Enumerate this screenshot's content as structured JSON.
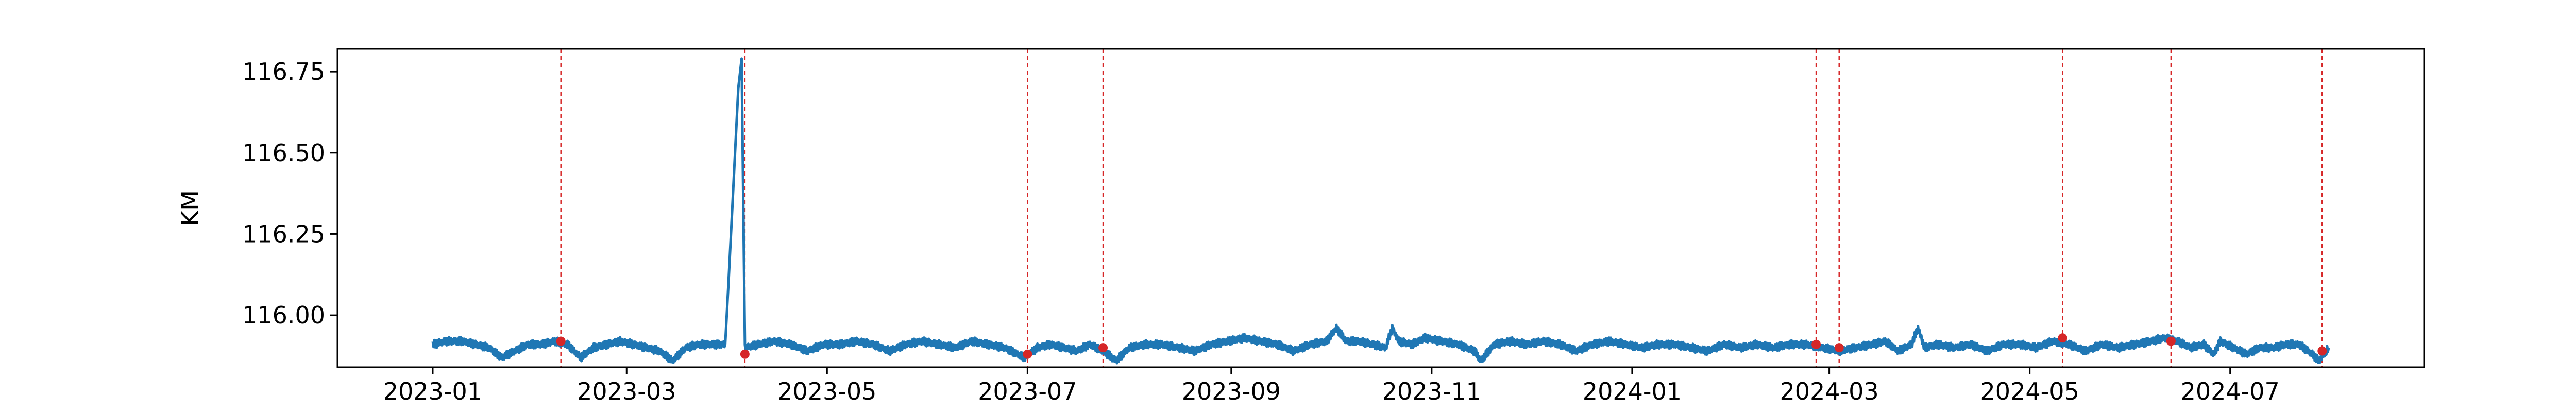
{
  "chart_data": {
    "type": "line",
    "title": "",
    "xlabel": "",
    "ylabel": "KM",
    "xlim": [
      "2022-12-03",
      "2024-08-29"
    ],
    "ylim": [
      115.84,
      116.82
    ],
    "grid": false,
    "legend": "none",
    "x_ticks": [
      "2023-01",
      "2023-03",
      "2023-05",
      "2023-07",
      "2023-09",
      "2023-11",
      "2024-01",
      "2024-03",
      "2024-05",
      "2024-07"
    ],
    "y_ticks": [
      "116.00",
      "116.25",
      "116.50",
      "116.75"
    ],
    "series": [
      {
        "color": "#1f77b4",
        "points": [
          [
            "2023-01-01",
            115.91
          ],
          [
            "2023-01-05",
            115.92
          ],
          [
            "2023-01-10",
            115.92
          ],
          [
            "2023-01-14",
            115.91
          ],
          [
            "2023-01-18",
            115.9
          ],
          [
            "2023-01-22",
            115.87
          ],
          [
            "2023-01-26",
            115.89
          ],
          [
            "2023-01-30",
            115.91
          ],
          [
            "2023-02-03",
            115.91
          ],
          [
            "2023-02-07",
            115.92
          ],
          [
            "2023-02-11",
            115.91
          ],
          [
            "2023-02-15",
            115.87
          ],
          [
            "2023-02-19",
            115.9
          ],
          [
            "2023-02-23",
            115.91
          ],
          [
            "2023-02-27",
            115.92
          ],
          [
            "2023-03-03",
            115.91
          ],
          [
            "2023-03-07",
            115.9
          ],
          [
            "2023-03-11",
            115.89
          ],
          [
            "2023-03-15",
            115.86
          ],
          [
            "2023-03-19",
            115.9
          ],
          [
            "2023-03-23",
            115.91
          ],
          [
            "2023-03-27",
            115.91
          ],
          [
            "2023-03-31",
            115.91
          ],
          [
            "2023-04-01",
            116.1
          ],
          [
            "2023-04-02",
            116.3
          ],
          [
            "2023-04-03",
            116.5
          ],
          [
            "2023-04-04",
            116.7
          ],
          [
            "2023-04-05",
            116.79
          ],
          [
            "2023-04-06",
            115.9
          ],
          [
            "2023-04-10",
            115.91
          ],
          [
            "2023-04-15",
            115.92
          ],
          [
            "2023-04-20",
            115.91
          ],
          [
            "2023-04-25",
            115.89
          ],
          [
            "2023-04-30",
            115.91
          ],
          [
            "2023-05-05",
            115.91
          ],
          [
            "2023-05-10",
            115.92
          ],
          [
            "2023-05-15",
            115.91
          ],
          [
            "2023-05-20",
            115.89
          ],
          [
            "2023-05-25",
            115.91
          ],
          [
            "2023-05-30",
            115.92
          ],
          [
            "2023-06-04",
            115.91
          ],
          [
            "2023-06-09",
            115.9
          ],
          [
            "2023-06-14",
            115.92
          ],
          [
            "2023-06-19",
            115.91
          ],
          [
            "2023-06-24",
            115.9
          ],
          [
            "2023-06-30",
            115.87
          ],
          [
            "2023-07-04",
            115.9
          ],
          [
            "2023-07-08",
            115.91
          ],
          [
            "2023-07-12",
            115.9
          ],
          [
            "2023-07-16",
            115.89
          ],
          [
            "2023-07-20",
            115.91
          ],
          [
            "2023-07-24",
            115.89
          ],
          [
            "2023-07-28",
            115.86
          ],
          [
            "2023-08-01",
            115.9
          ],
          [
            "2023-08-06",
            115.91
          ],
          [
            "2023-08-11",
            115.91
          ],
          [
            "2023-08-16",
            115.9
          ],
          [
            "2023-08-21",
            115.89
          ],
          [
            "2023-08-26",
            115.91
          ],
          [
            "2023-08-31",
            115.92
          ],
          [
            "2023-09-05",
            115.93
          ],
          [
            "2023-09-10",
            115.92
          ],
          [
            "2023-09-15",
            115.91
          ],
          [
            "2023-09-20",
            115.89
          ],
          [
            "2023-09-25",
            115.91
          ],
          [
            "2023-09-30",
            115.92
          ],
          [
            "2023-10-03",
            115.96
          ],
          [
            "2023-10-06",
            115.92
          ],
          [
            "2023-10-10",
            115.92
          ],
          [
            "2023-10-14",
            115.91
          ],
          [
            "2023-10-18",
            115.9
          ],
          [
            "2023-10-20",
            115.96
          ],
          [
            "2023-10-22",
            115.92
          ],
          [
            "2023-10-26",
            115.91
          ],
          [
            "2023-10-30",
            115.93
          ],
          [
            "2023-11-04",
            115.92
          ],
          [
            "2023-11-09",
            115.91
          ],
          [
            "2023-11-14",
            115.89
          ],
          [
            "2023-11-16",
            115.86
          ],
          [
            "2023-11-20",
            115.91
          ],
          [
            "2023-11-25",
            115.92
          ],
          [
            "2023-11-30",
            115.91
          ],
          [
            "2023-12-05",
            115.92
          ],
          [
            "2023-12-10",
            115.91
          ],
          [
            "2023-12-15",
            115.89
          ],
          [
            "2023-12-20",
            115.91
          ],
          [
            "2023-12-25",
            115.92
          ],
          [
            "2023-12-30",
            115.91
          ],
          [
            "2024-01-04",
            115.9
          ],
          [
            "2024-01-09",
            115.91
          ],
          [
            "2024-01-14",
            115.91
          ],
          [
            "2024-01-19",
            115.9
          ],
          [
            "2024-01-24",
            115.89
          ],
          [
            "2024-01-29",
            115.91
          ],
          [
            "2024-02-03",
            115.9
          ],
          [
            "2024-02-08",
            115.91
          ],
          [
            "2024-02-13",
            115.9
          ],
          [
            "2024-02-18",
            115.91
          ],
          [
            "2024-02-23",
            115.91
          ],
          [
            "2024-02-28",
            115.9
          ],
          [
            "2024-03-04",
            115.89
          ],
          [
            "2024-03-09",
            115.9
          ],
          [
            "2024-03-14",
            115.91
          ],
          [
            "2024-03-18",
            115.92
          ],
          [
            "2024-03-22",
            115.89
          ],
          [
            "2024-03-26",
            115.91
          ],
          [
            "2024-03-28",
            115.96
          ],
          [
            "2024-03-30",
            115.9
          ],
          [
            "2024-04-03",
            115.91
          ],
          [
            "2024-04-08",
            115.9
          ],
          [
            "2024-04-13",
            115.91
          ],
          [
            "2024-04-18",
            115.89
          ],
          [
            "2024-04-23",
            115.91
          ],
          [
            "2024-04-28",
            115.91
          ],
          [
            "2024-05-03",
            115.9
          ],
          [
            "2024-05-08",
            115.92
          ],
          [
            "2024-05-13",
            115.91
          ],
          [
            "2024-05-18",
            115.89
          ],
          [
            "2024-05-23",
            115.91
          ],
          [
            "2024-05-28",
            115.9
          ],
          [
            "2024-06-02",
            115.91
          ],
          [
            "2024-06-07",
            115.92
          ],
          [
            "2024-06-11",
            115.93
          ],
          [
            "2024-06-15",
            115.92
          ],
          [
            "2024-06-19",
            115.9
          ],
          [
            "2024-06-23",
            115.91
          ],
          [
            "2024-06-26",
            115.88
          ],
          [
            "2024-06-28",
            115.92
          ],
          [
            "2024-07-02",
            115.9
          ],
          [
            "2024-07-06",
            115.88
          ],
          [
            "2024-07-10",
            115.9
          ],
          [
            "2024-07-14",
            115.9
          ],
          [
            "2024-07-18",
            115.91
          ],
          [
            "2024-07-22",
            115.91
          ],
          [
            "2024-07-26",
            115.88
          ],
          [
            "2024-07-28",
            115.86
          ],
          [
            "2024-07-31",
            115.9
          ]
        ]
      }
    ],
    "vlines": {
      "color": "#d62728",
      "style": "dashed",
      "dates": [
        "2023-02-09",
        "2023-04-06",
        "2023-07-01",
        "2023-07-24",
        "2024-02-26",
        "2024-03-04",
        "2024-05-11",
        "2024-06-13",
        "2024-07-29"
      ]
    },
    "markers": {
      "color": "#d62728",
      "points": [
        [
          "2023-02-09",
          115.92
        ],
        [
          "2023-04-06",
          115.88
        ],
        [
          "2023-07-01",
          115.88
        ],
        [
          "2023-07-24",
          115.9
        ],
        [
          "2024-02-26",
          115.91
        ],
        [
          "2024-03-04",
          115.9
        ],
        [
          "2024-05-11",
          115.93
        ],
        [
          "2024-06-13",
          115.92
        ],
        [
          "2024-07-29",
          115.89
        ]
      ]
    }
  }
}
